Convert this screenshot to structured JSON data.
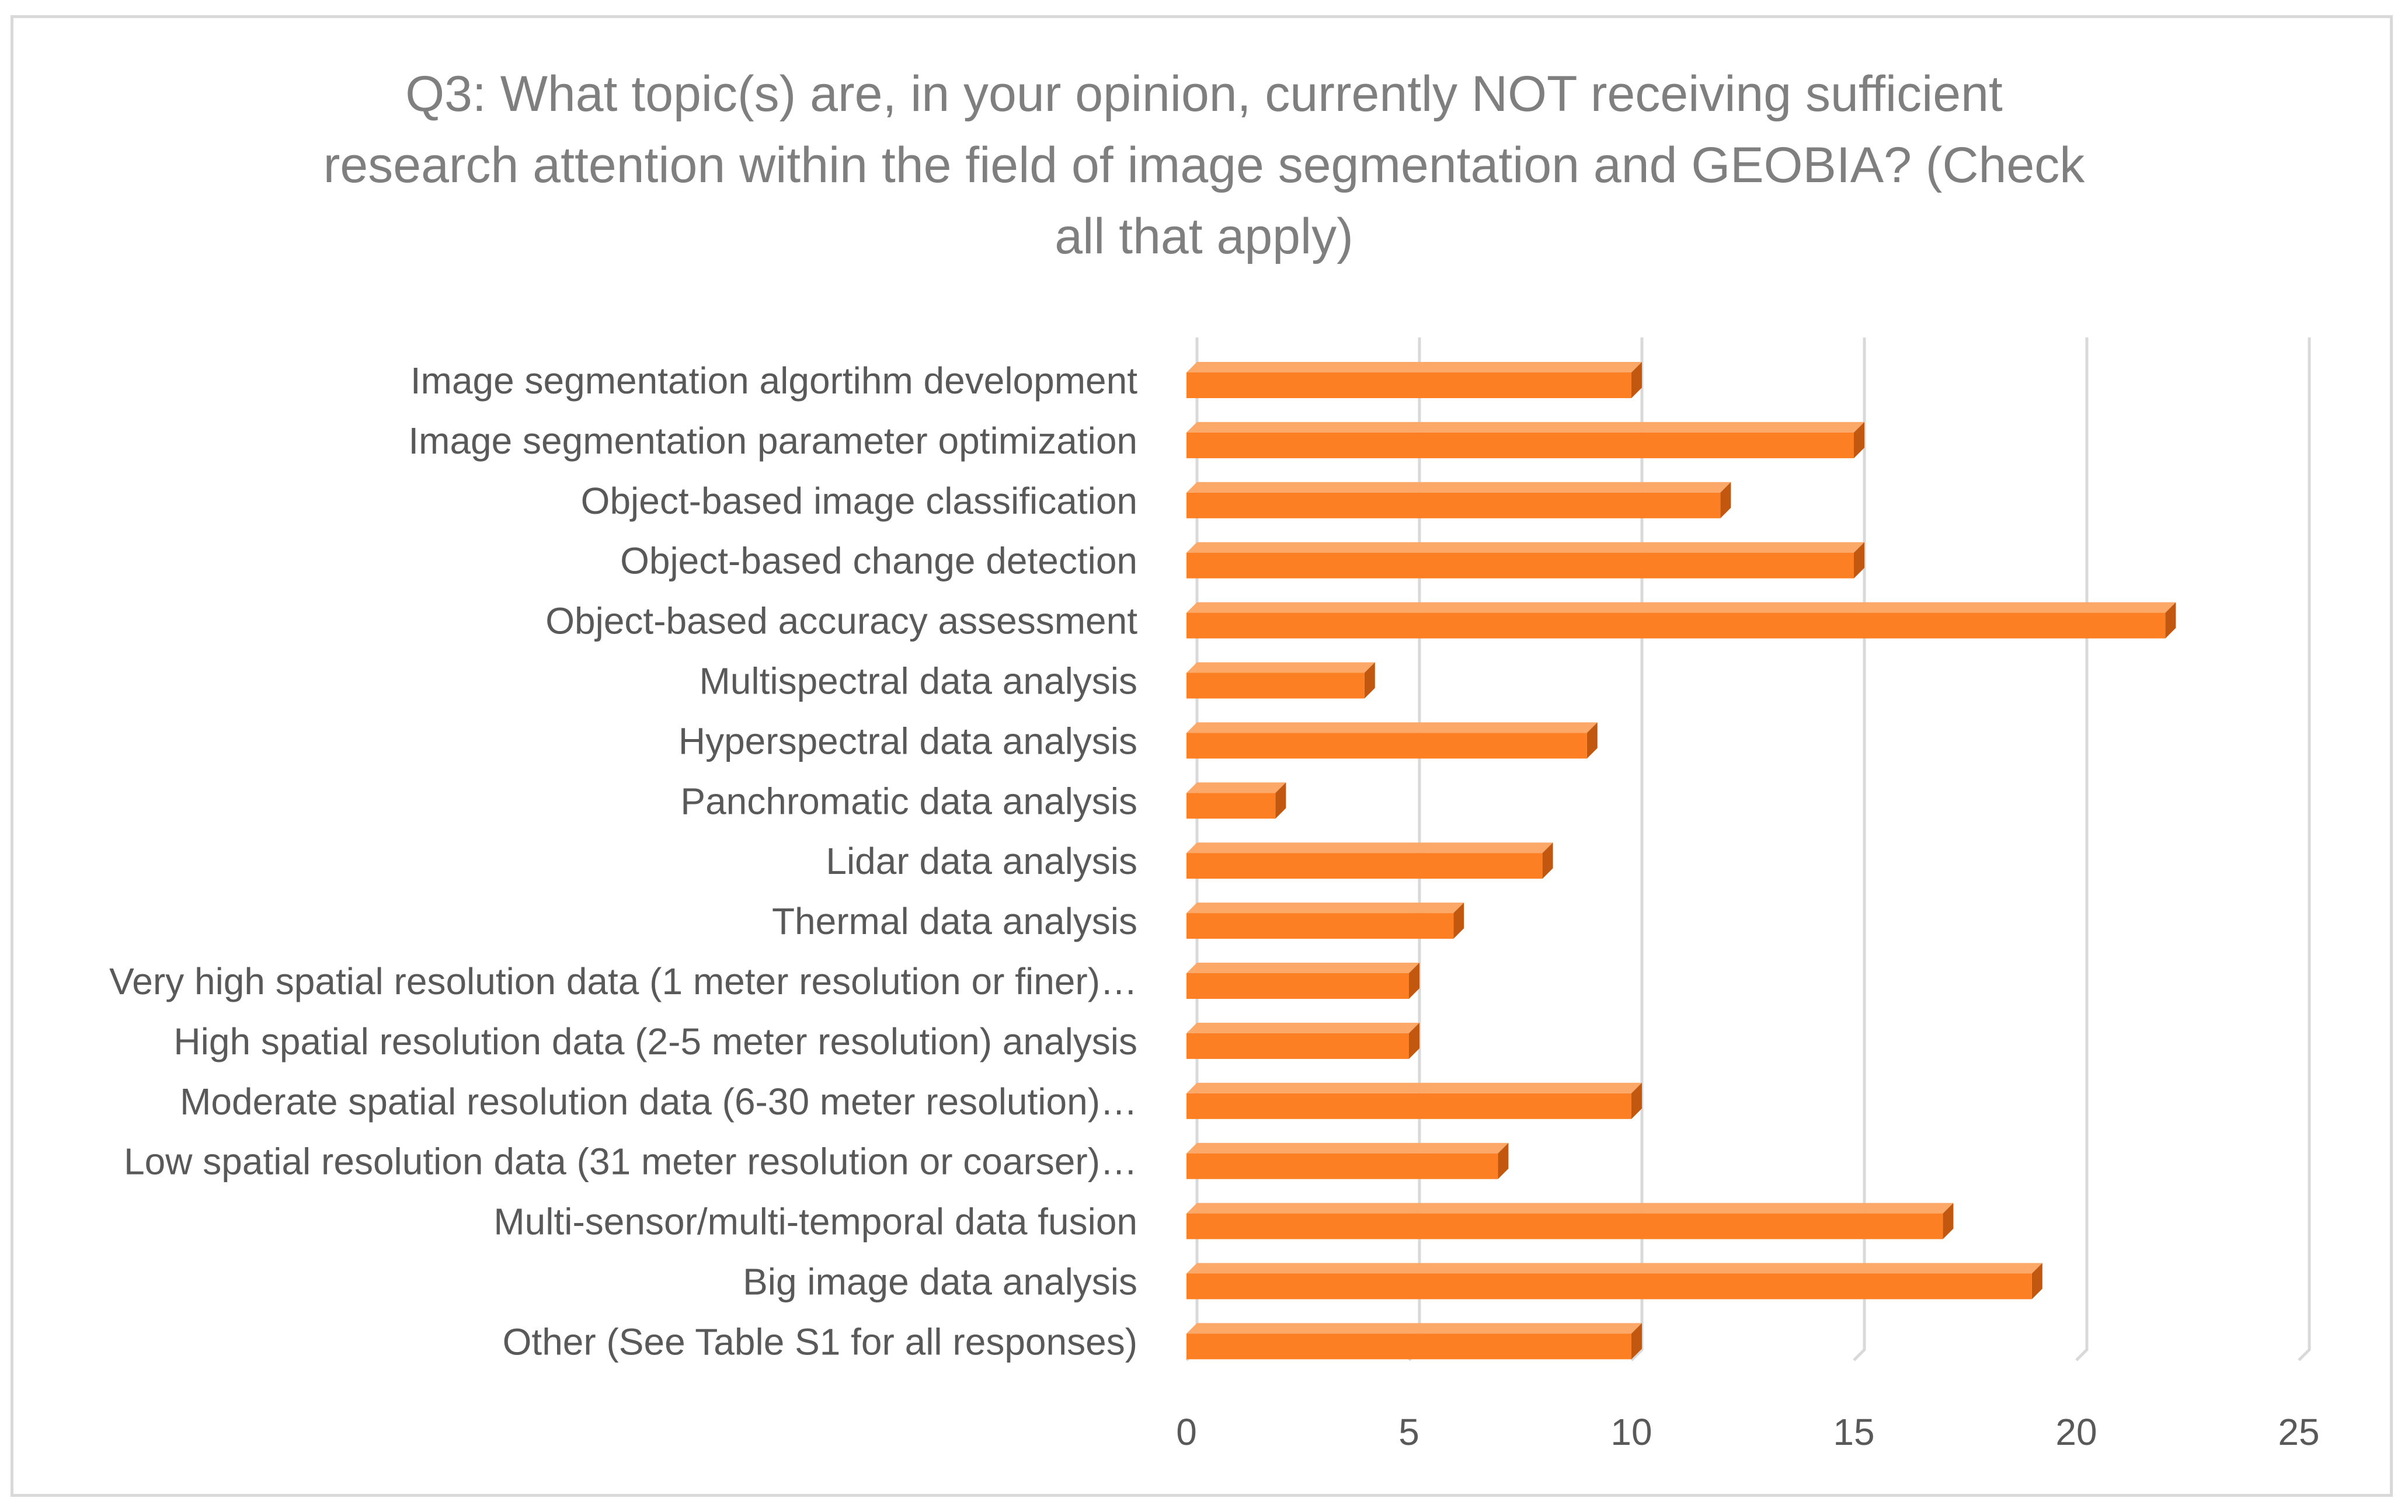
{
  "chart_data": {
    "type": "bar",
    "orientation": "horizontal",
    "title_lines": [
      "Q3: What topic(s) are, in your opinion, currently NOT receiving sufficient",
      "research attention within the field of image segmentation and GEOBIA? (Check",
      "all that apply)"
    ],
    "categories": [
      "Image segmentation algortihm development",
      "Image segmentation parameter optimization",
      "Object-based image classification",
      "Object-based change detection",
      "Object-based accuracy assessment",
      "Multispectral data analysis",
      "Hyperspectral data analysis",
      "Panchromatic data analysis",
      "Lidar data analysis",
      "Thermal data analysis",
      "Very high spatial resolution data (1 meter resolution or finer)…",
      "High spatial resolution data (2-5 meter resolution) analysis",
      "Moderate spatial resolution data (6-30 meter resolution)…",
      "Low spatial resolution data (31 meter resolution or coarser)…",
      "Multi-sensor/multi-temporal data fusion",
      "Big image data analysis",
      "Other (See Table S1 for all responses)"
    ],
    "values": [
      10,
      15,
      12,
      15,
      22,
      4,
      9,
      2,
      8,
      6,
      5,
      5,
      10,
      7,
      17,
      19,
      10
    ],
    "xlim": [
      0,
      25
    ],
    "xticks": [
      "0",
      "5",
      "10",
      "15",
      "20",
      "25"
    ],
    "xlabel": "",
    "ylabel": "",
    "grid": true,
    "legend": "none",
    "colors": {
      "bar_front": "#fd7f23",
      "bar_top": "#fca868",
      "bar_side": "#c2570f",
      "grid": "#d9d9d9",
      "text": "#595959",
      "title": "#7f7f7f"
    }
  }
}
